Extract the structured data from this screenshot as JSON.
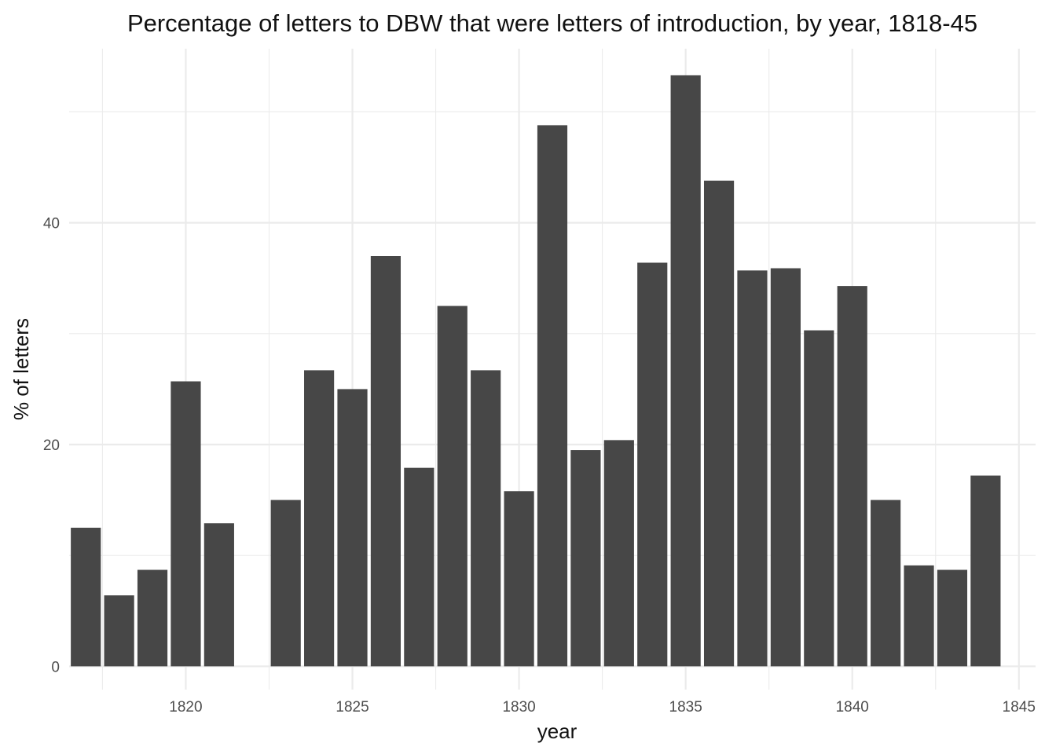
{
  "chart_data": {
    "type": "bar",
    "title": "Percentage of letters to DBW that were letters of introduction, by year, 1818-45",
    "xlabel": "year",
    "ylabel": "% of letters",
    "x": [
      1817,
      1818,
      1819,
      1820,
      1821,
      1823,
      1824,
      1825,
      1826,
      1827,
      1828,
      1829,
      1830,
      1831,
      1832,
      1833,
      1834,
      1835,
      1836,
      1837,
      1838,
      1839,
      1840,
      1841,
      1842,
      1843,
      1844
    ],
    "values": [
      12.5,
      6.4,
      8.7,
      25.7,
      12.9,
      15.0,
      26.7,
      25.0,
      37.0,
      17.9,
      32.5,
      26.7,
      15.8,
      48.8,
      19.5,
      20.4,
      36.4,
      53.3,
      43.8,
      35.7,
      35.9,
      30.3,
      34.3,
      15.0,
      9.1,
      8.7,
      17.2
    ],
    "xlim": [
      1816.5,
      1845.5
    ],
    "ylim": [
      -2.1,
      55.7
    ],
    "x_ticks": [
      "1820",
      "1825",
      "1830",
      "1835",
      "1840",
      "1845"
    ],
    "y_ticks": [
      "0",
      "20",
      "40"
    ],
    "bar_color": "#474747",
    "grid": true,
    "legend": "none"
  }
}
